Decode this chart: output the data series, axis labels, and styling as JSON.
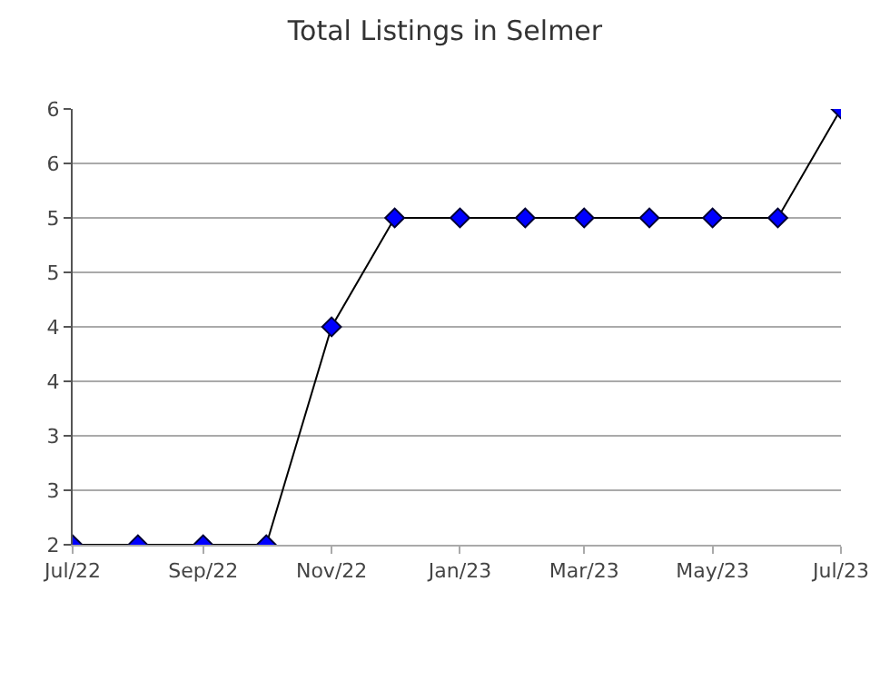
{
  "chart_data": {
    "type": "line",
    "title": "Total Listings in Selmer",
    "x": [
      "2022-07",
      "2022-08",
      "2022-09",
      "2022-10",
      "2022-11",
      "2022-12",
      "2023-01",
      "2023-02",
      "2023-03",
      "2023-04",
      "2023-05",
      "2023-06",
      "2023-07"
    ],
    "series": [
      {
        "color": "#0000ff",
        "values": [
          2,
          2,
          2,
          2,
          4,
          5,
          5,
          5,
          5,
          5,
          5,
          5,
          6
        ]
      }
    ],
    "xlim": [
      "2022-07",
      "2023-07"
    ],
    "xticks": [
      {
        "value": "2022-07",
        "label": "Jul/22"
      },
      {
        "value": "2022-09",
        "label": "Sep/22"
      },
      {
        "value": "2022-11",
        "label": "Nov/22"
      },
      {
        "value": "2023-01",
        "label": "Jan/23"
      },
      {
        "value": "2023-03",
        "label": "Mar/23"
      },
      {
        "value": "2023-05",
        "label": "May/23"
      },
      {
        "value": "2023-07",
        "label": "Jul/23"
      }
    ],
    "ylim": [
      2,
      6
    ],
    "yticks": [
      2,
      {
        "value": 2.5,
        "label": "3"
      },
      3,
      {
        "value": 3.5,
        "label": "4"
      },
      4,
      {
        "value": 4.5,
        "label": "5"
      },
      5,
      {
        "value": 5.5,
        "label": "6"
      },
      6
    ],
    "grid": "y",
    "marker": "diamond",
    "line_style": "solid",
    "legend": false
  }
}
